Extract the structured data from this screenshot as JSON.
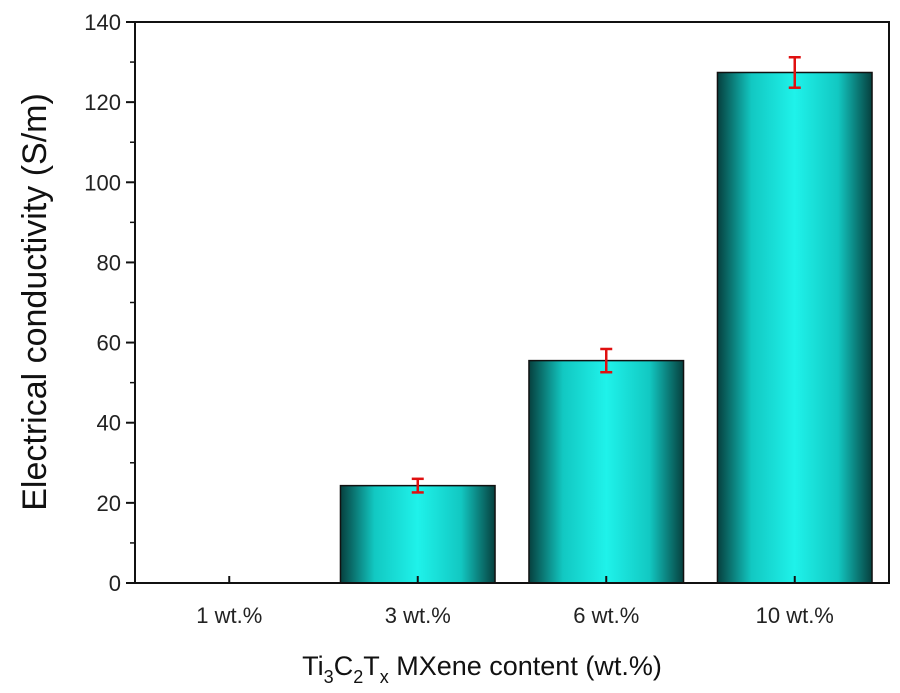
{
  "chart_data": {
    "type": "bar",
    "categories": [
      "1 wt.%",
      "3 wt.%",
      "6 wt.%",
      "10 wt.%"
    ],
    "values": [
      0,
      24.3,
      55.5,
      127.4
    ],
    "errors": [
      0,
      1.7,
      2.9,
      3.8
    ],
    "xlabel": {
      "prefix": "Ti",
      "sub1": "3",
      "mid1": "C",
      "sub2": "2",
      "mid2": "T",
      "sub3": "x",
      "suffix": " MXene content (wt.%)"
    },
    "ylabel": "Electrical conductivity (S/m)",
    "ylim": [
      0,
      140
    ],
    "yticks": [
      0,
      20,
      40,
      60,
      80,
      100,
      120,
      140
    ],
    "grid": false,
    "legend": "none",
    "colors": {
      "bar_center": "#1ff2ea",
      "bar_mid": "#12c8c2",
      "bar_edge": "#06403e",
      "error_bar": "#e01010",
      "axis": "#111111"
    }
  }
}
